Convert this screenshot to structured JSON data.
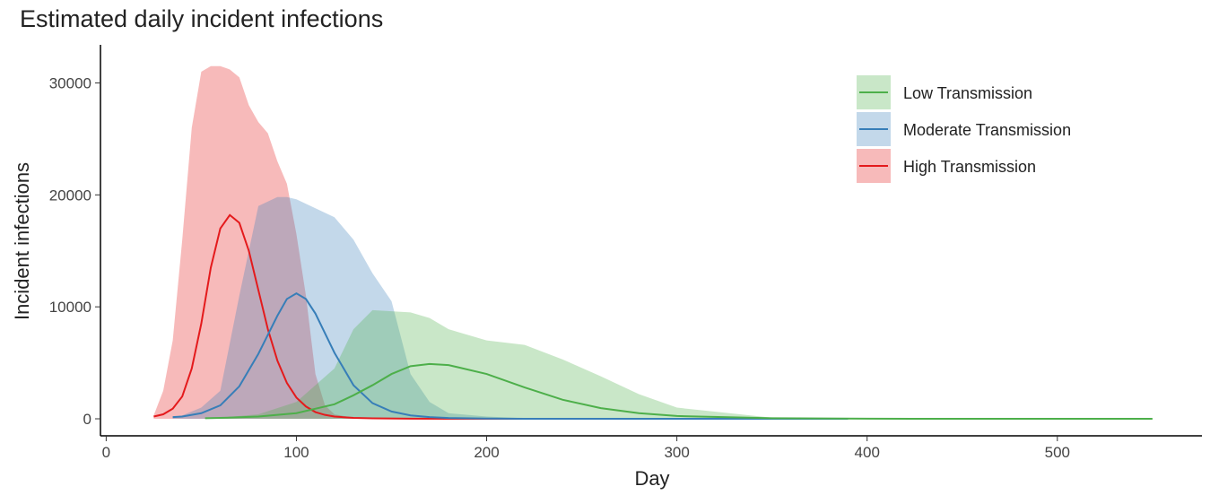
{
  "chart_data": {
    "type": "ribbon-line",
    "title": "Estimated daily incident infections",
    "x_label": "Day",
    "y_label": "Incident infections",
    "xlim": [
      -3,
      576
    ],
    "ylim": [
      -1520,
      33400
    ],
    "xticks": [
      0,
      100,
      200,
      300,
      400,
      500
    ],
    "yticks": [
      0,
      10000,
      20000,
      30000
    ],
    "grid": false,
    "legend": "top-right",
    "series": [
      {
        "name": "Low Transmission",
        "color": "#4daf4a",
        "x": [
          52,
          60,
          80,
          100,
          120,
          130,
          140,
          150,
          160,
          170,
          180,
          200,
          220,
          240,
          260,
          280,
          300,
          350,
          400,
          450,
          550
        ],
        "values": [
          50,
          80,
          200,
          500,
          1300,
          2100,
          3000,
          4000,
          4700,
          4900,
          4800,
          4000,
          2800,
          1700,
          950,
          500,
          250,
          50,
          10,
          0,
          0
        ],
        "lower": [
          0,
          0,
          0,
          0,
          0,
          0,
          0,
          0,
          0,
          0,
          0,
          0,
          0,
          0,
          0,
          0,
          0,
          0,
          0,
          0,
          0
        ],
        "upper": [
          50,
          100,
          400,
          1500,
          4500,
          8000,
          9700,
          9600,
          9500,
          9000,
          8000,
          7000,
          6600,
          5300,
          3800,
          2200,
          1000,
          100,
          20,
          0,
          0
        ]
      },
      {
        "name": "Moderate Transmission",
        "color": "#377eb8",
        "x": [
          35,
          40,
          50,
          60,
          70,
          80,
          90,
          95,
          100,
          105,
          110,
          120,
          130,
          140,
          150,
          160,
          170,
          180,
          200,
          220,
          250,
          300,
          390
        ],
        "values": [
          150,
          200,
          500,
          1200,
          2900,
          5800,
          9200,
          10700,
          11200,
          10700,
          9400,
          5900,
          3000,
          1400,
          650,
          300,
          150,
          70,
          20,
          5,
          0,
          0,
          0
        ],
        "lower": [
          0,
          0,
          0,
          0,
          0,
          0,
          0,
          0,
          0,
          0,
          0,
          0,
          0,
          0,
          0,
          0,
          0,
          0,
          0,
          0,
          0,
          0,
          0
        ],
        "upper": [
          150,
          300,
          1000,
          2500,
          11000,
          19000,
          19800,
          19800,
          19600,
          19200,
          18800,
          18000,
          16000,
          13000,
          10500,
          4000,
          1500,
          500,
          200,
          50,
          10,
          0,
          0
        ]
      },
      {
        "name": "High Transmission",
        "color": "#e41a1c",
        "x": [
          25,
          30,
          35,
          40,
          45,
          50,
          55,
          60,
          65,
          70,
          75,
          80,
          85,
          90,
          95,
          100,
          105,
          110,
          115,
          120,
          130,
          140,
          160,
          180,
          200,
          230
        ],
        "values": [
          200,
          400,
          900,
          2000,
          4500,
          8500,
          13500,
          17000,
          18200,
          17500,
          15000,
          11500,
          8000,
          5200,
          3200,
          1900,
          1100,
          600,
          350,
          200,
          80,
          40,
          10,
          0,
          0,
          0
        ],
        "lower": [
          0,
          0,
          0,
          0,
          0,
          0,
          0,
          0,
          0,
          0,
          0,
          0,
          0,
          0,
          0,
          0,
          0,
          0,
          0,
          0,
          0,
          0,
          0,
          0,
          0,
          0
        ],
        "upper": [
          300,
          2500,
          7000,
          16000,
          26000,
          31000,
          31500,
          31500,
          31200,
          30500,
          28000,
          26500,
          25500,
          23000,
          21000,
          16500,
          11000,
          4000,
          1200,
          400,
          100,
          50,
          10,
          0,
          0,
          0
        ]
      }
    ]
  }
}
